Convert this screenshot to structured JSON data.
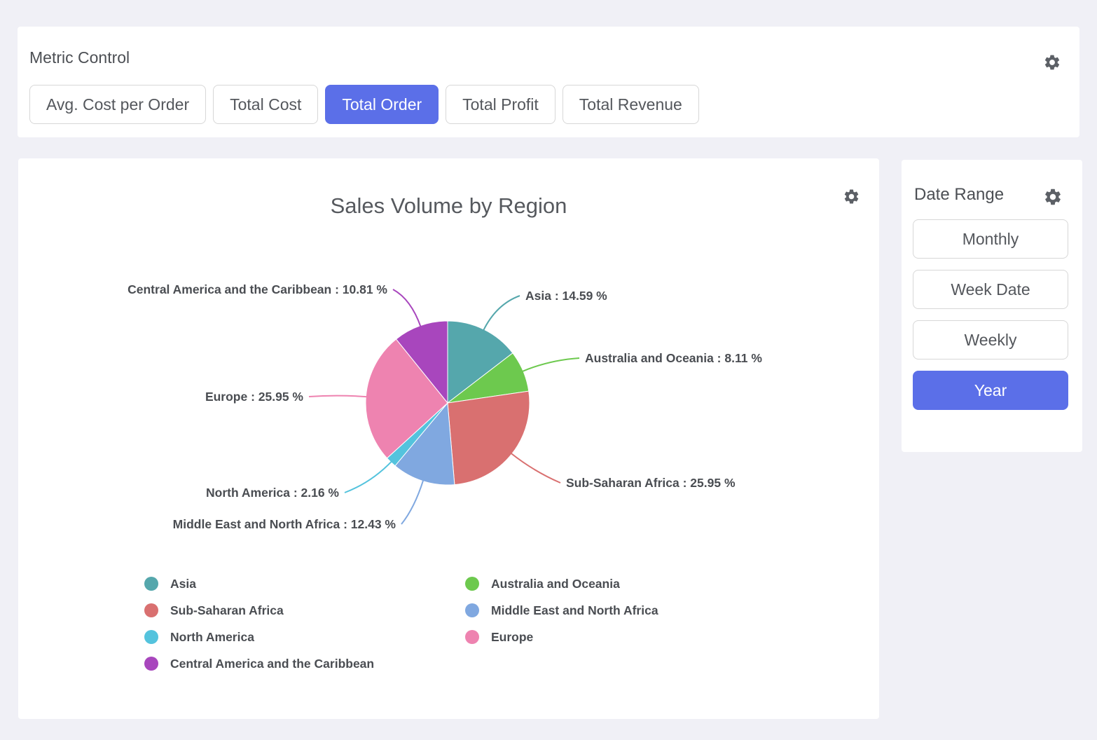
{
  "metric_control": {
    "title": "Metric Control",
    "buttons": [
      {
        "label": "Avg. Cost per Order",
        "selected": false
      },
      {
        "label": "Total Cost",
        "selected": false
      },
      {
        "label": "Total Order",
        "selected": true
      },
      {
        "label": "Total Profit",
        "selected": false
      },
      {
        "label": "Total Revenue",
        "selected": false
      }
    ]
  },
  "date_range": {
    "title": "Date Range",
    "buttons": [
      {
        "label": "Monthly",
        "selected": false
      },
      {
        "label": "Week Date",
        "selected": false
      },
      {
        "label": "Weekly",
        "selected": false
      },
      {
        "label": "Year",
        "selected": true
      }
    ]
  },
  "chart_data": {
    "type": "pie",
    "title": "Sales Volume by Region",
    "unit": "%",
    "label_format": "{name} : {value} %",
    "legend_position": "bottom",
    "series": [
      {
        "name": "Asia",
        "value": 14.59,
        "color": "#55a7ac"
      },
      {
        "name": "Australia and Oceania",
        "value": 8.11,
        "color": "#6dc94e"
      },
      {
        "name": "Sub-Saharan Africa",
        "value": 25.95,
        "color": "#d97070"
      },
      {
        "name": "Middle East and North Africa",
        "value": 12.43,
        "color": "#80a8e0"
      },
      {
        "name": "North America",
        "value": 2.16,
        "color": "#54c3dd"
      },
      {
        "name": "Europe",
        "value": 25.95,
        "color": "#ee83b0"
      },
      {
        "name": "Central America and the Caribbean",
        "value": 10.81,
        "color": "#a846bd"
      }
    ]
  },
  "icons": {
    "metric_settings": "gear-icon",
    "chart_settings": "gear-icon",
    "date_range_settings": "gear-icon"
  },
  "colors": {
    "accent": "#5b6fe8",
    "page_background": "#f0f0f6",
    "panel_background": "#ffffff",
    "text": "#4a4d52"
  }
}
